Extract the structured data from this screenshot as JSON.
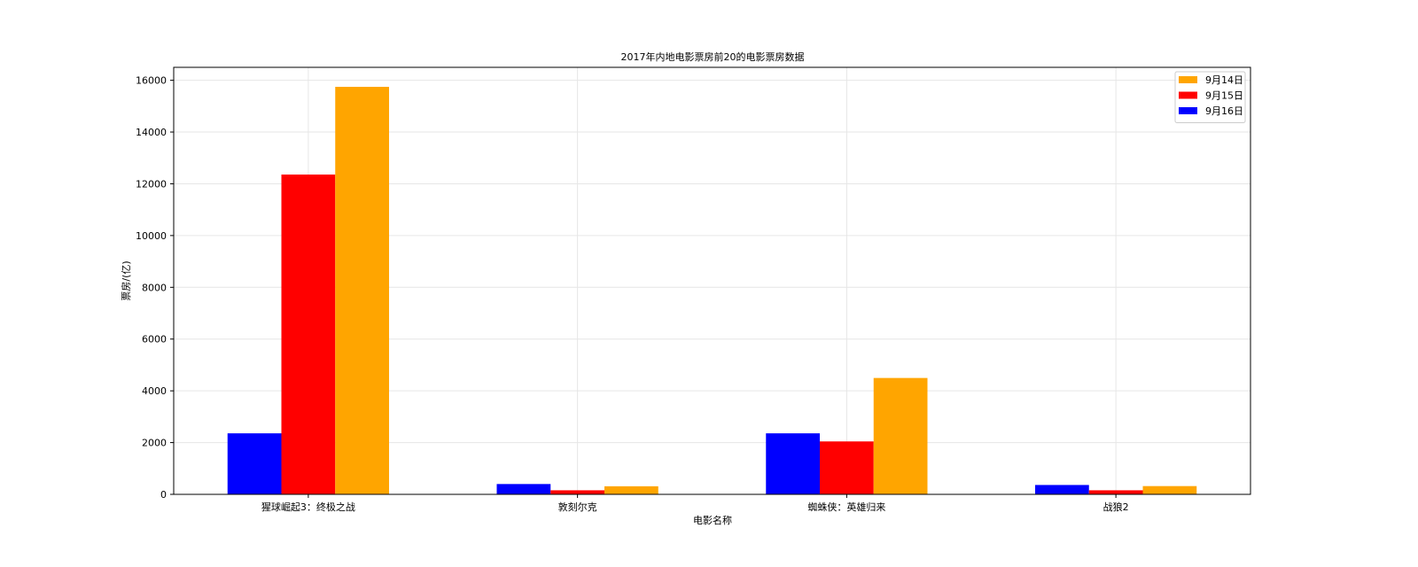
{
  "chart_data": {
    "type": "bar",
    "title": "2017年内地电影票房前20的电影票房数据",
    "xlabel": "电影名称",
    "ylabel": "票房/(亿)",
    "categories": [
      "猩球崛起3：终极之战",
      "敦刻尔克",
      "蜘蛛侠：英雄归来",
      "战狼2"
    ],
    "ylim": [
      0,
      16500
    ],
    "yticks": [
      0,
      2000,
      4000,
      6000,
      8000,
      10000,
      12000,
      14000,
      16000
    ],
    "grid": true,
    "legend_position": "top-right",
    "series": [
      {
        "name": "9月16日",
        "color": "#0000ff",
        "values": [
          2358,
          399,
          2358,
          362
        ]
      },
      {
        "name": "9月15日",
        "color": "#ff0000",
        "values": [
          12357,
          157,
          2045,
          157
        ]
      },
      {
        "name": "9月14日",
        "color": "#ffa500",
        "values": [
          15746,
          312,
          4497,
          319
        ]
      }
    ],
    "legend_order": [
      "9月14日",
      "9月15日",
      "9月16日"
    ]
  }
}
